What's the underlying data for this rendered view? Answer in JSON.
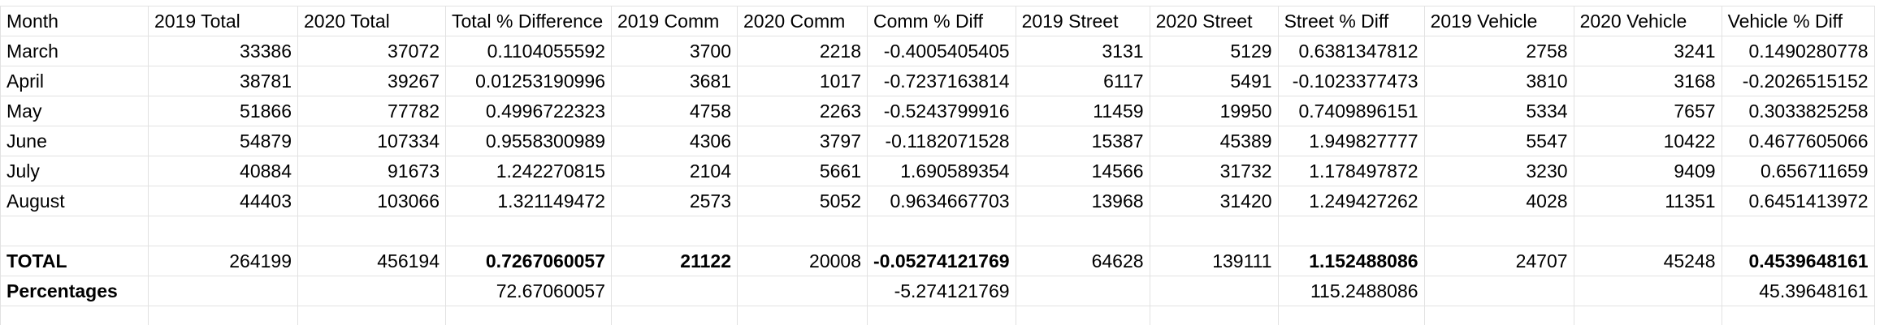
{
  "table": {
    "header": [
      "Month",
      "2019 Total",
      "2020 Total",
      "Total % Difference",
      "2019 Comm",
      "2020 Comm",
      "Comm % Diff",
      "2019 Street",
      "2020 Street",
      "Street % Diff",
      "2019 Vehicle",
      "2020 Vehicle",
      "Vehicle % Diff"
    ],
    "rows": [
      [
        "March",
        "33386",
        "37072",
        "0.1104055592",
        "3700",
        "2218",
        "-0.4005405405",
        "3131",
        "5129",
        "0.6381347812",
        "2758",
        "3241",
        "0.1490280778"
      ],
      [
        "April",
        "38781",
        "39267",
        "0.01253190996",
        "3681",
        "1017",
        "-0.7237163814",
        "6117",
        "5491",
        "-0.1023377473",
        "3810",
        "3168",
        "-0.2026515152"
      ],
      [
        "May",
        "51866",
        "77782",
        "0.4996722323",
        "4758",
        "2263",
        "-0.5243799916",
        "11459",
        "19950",
        "0.7409896151",
        "5334",
        "7657",
        "0.3033825258"
      ],
      [
        "June",
        "54879",
        "107334",
        "0.9558300989",
        "4306",
        "3797",
        "-0.1182071528",
        "15387",
        "45389",
        "1.949827777",
        "5547",
        "10422",
        "0.4677605066"
      ],
      [
        "July",
        "40884",
        "91673",
        "1.242270815",
        "2104",
        "5661",
        "1.690589354",
        "14566",
        "31732",
        "1.178497872",
        "3230",
        "9409",
        "0.656711659"
      ],
      [
        "August",
        "44403",
        "103066",
        "1.321149472",
        "2573",
        "5052",
        "0.9634667703",
        "13968",
        "31420",
        "1.249427262",
        "4028",
        "11351",
        "0.6451413972"
      ]
    ],
    "total": [
      "TOTAL",
      "264199",
      "456194",
      "0.7267060057",
      "21122",
      "20008",
      "-0.05274121769",
      "64628",
      "139111",
      "1.152488086",
      "24707",
      "45248",
      "0.4539648161"
    ],
    "percentages": [
      "Percentages",
      null,
      null,
      "72.67060057",
      null,
      null,
      "-5.274121769",
      null,
      null,
      "115.2488086",
      null,
      null,
      "45.39648161"
    ]
  }
}
